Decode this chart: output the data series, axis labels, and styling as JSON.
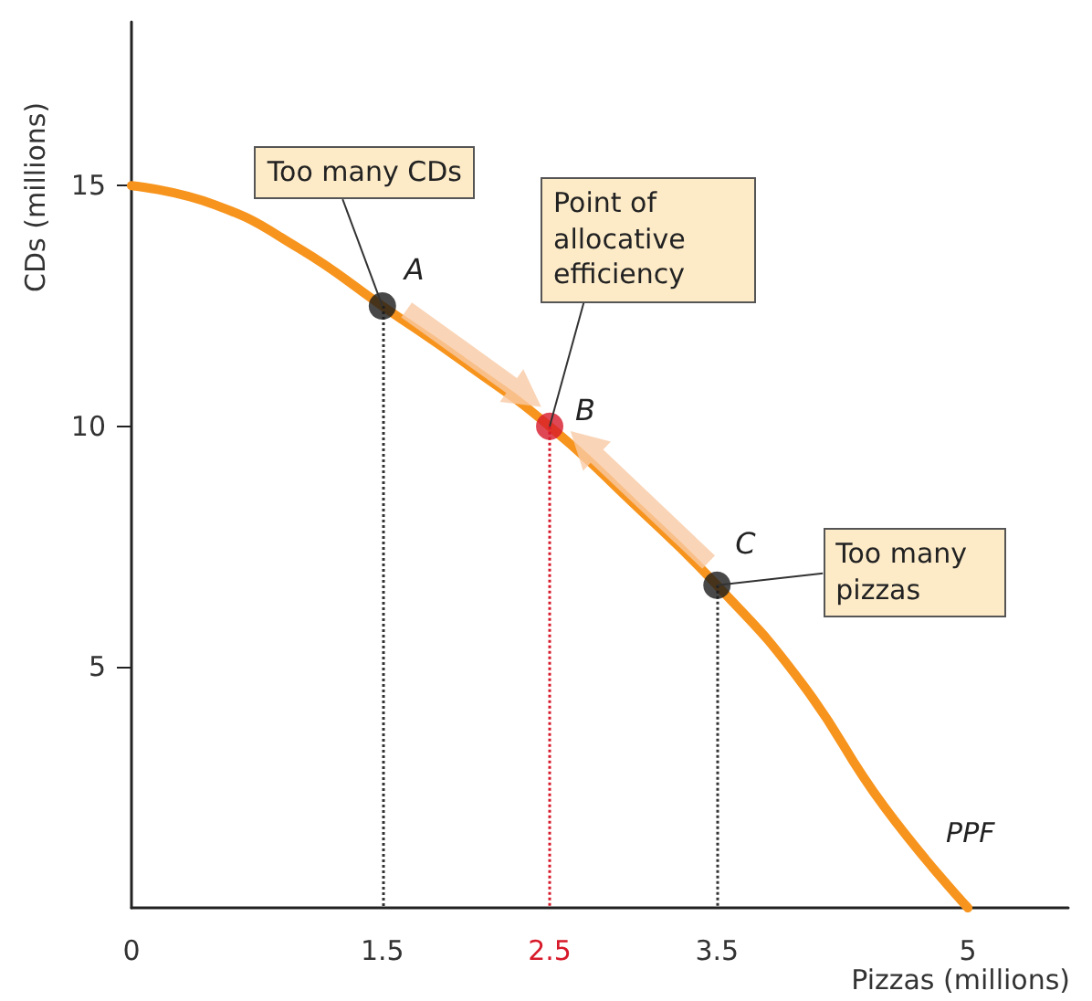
{
  "chart_data": {
    "type": "line",
    "xlabel": "Pizzas (millions)",
    "ylabel": "CDs (millions)",
    "xlim": [
      0,
      5.6
    ],
    "ylim": [
      0,
      18.4
    ],
    "xticks": [
      0,
      1.5,
      2.5,
      3.5,
      5
    ],
    "yticks": [
      5,
      10,
      15
    ],
    "grid": false,
    "legend": false,
    "series": [
      {
        "name": "PPF",
        "color": "#f7941d",
        "marker": "none",
        "x": [
          0,
          0.5,
          1,
          1.5,
          2,
          2.5,
          3,
          3.5,
          4,
          4.5,
          5
        ],
        "values": [
          15,
          14.6,
          13.7,
          12.5,
          11.3,
          10,
          8.4,
          6.7,
          4.7,
          2.1,
          0
        ]
      },
      {
        "type": "scatter",
        "marker": "circle",
        "x": [
          1.5,
          2.5,
          3.5
        ],
        "values": [
          12.5,
          10,
          6.7
        ],
        "colors": [
          "#1a1a1a",
          "#d7192a",
          "#1a1a1a"
        ]
      }
    ],
    "ref_lines": [
      {
        "axis": "x",
        "value": 1.5,
        "color": "#333333",
        "line_style": "dotted"
      },
      {
        "axis": "x",
        "value": 2.5,
        "color": "#d7192a",
        "line_style": "dotted"
      },
      {
        "axis": "x",
        "value": 3.5,
        "color": "#333333",
        "line_style": "dotted"
      }
    ],
    "annotations": [
      {
        "text": "Too many CDs",
        "x": 1.5,
        "y": 12.5
      },
      {
        "text": "Point of allocative efficiency",
        "x": 2.5,
        "y": 10
      },
      {
        "text": "Too many pizzas",
        "x": 3.5,
        "y": 6.7
      },
      {
        "text": "A",
        "x": 1.5,
        "y": 12.5
      },
      {
        "text": "B",
        "x": 2.5,
        "y": 10
      },
      {
        "text": "C",
        "x": 3.5,
        "y": 6.7
      }
    ]
  }
}
